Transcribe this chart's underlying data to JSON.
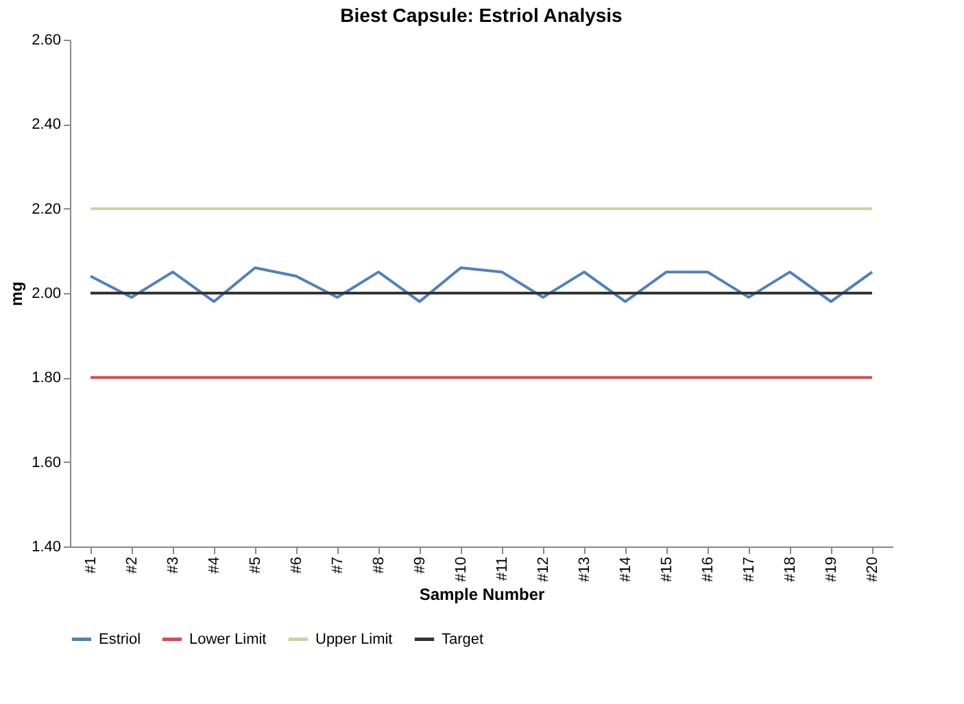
{
  "chart_data": {
    "type": "line",
    "title": "Biest Capsule:  Estriol Analysis",
    "xlabel": "Sample Number",
    "ylabel": "mg",
    "categories": [
      "#1",
      "#2",
      "#3",
      "#4",
      "#5",
      "#6",
      "#7",
      "#8",
      "#9",
      "#10",
      "#11",
      "#12",
      "#13",
      "#14",
      "#15",
      "#16",
      "#17",
      "#18",
      "#19",
      "#20"
    ],
    "series": [
      {
        "name": "Estriol",
        "color": "#4f81bd",
        "values": [
          2.04,
          1.99,
          2.05,
          1.98,
          2.06,
          2.04,
          1.99,
          2.05,
          1.98,
          2.06,
          2.05,
          1.99,
          2.05,
          1.98,
          2.05,
          2.05,
          1.99,
          2.05,
          1.98,
          2.05
        ]
      },
      {
        "name": "Lower Limit",
        "color": "#e0474c",
        "values": [
          1.8,
          1.8,
          1.8,
          1.8,
          1.8,
          1.8,
          1.8,
          1.8,
          1.8,
          1.8,
          1.8,
          1.8,
          1.8,
          1.8,
          1.8,
          1.8,
          1.8,
          1.8,
          1.8,
          1.8
        ]
      },
      {
        "name": "Upper Limit",
        "color": "#c3d69b",
        "values": [
          2.2,
          2.2,
          2.2,
          2.2,
          2.2,
          2.2,
          2.2,
          2.2,
          2.2,
          2.2,
          2.2,
          2.2,
          2.2,
          2.2,
          2.2,
          2.2,
          2.2,
          2.2,
          2.2,
          2.2
        ]
      },
      {
        "name": "Target",
        "color": "#333333",
        "values": [
          2.0,
          2.0,
          2.0,
          2.0,
          2.0,
          2.0,
          2.0,
          2.0,
          2.0,
          2.0,
          2.0,
          2.0,
          2.0,
          2.0,
          2.0,
          2.0,
          2.0,
          2.0,
          2.0,
          2.0
        ]
      }
    ],
    "ylim": [
      1.4,
      2.6
    ],
    "yticks": [
      {
        "value": 1.4,
        "label": "1.40"
      },
      {
        "value": 1.6,
        "label": "1.60"
      },
      {
        "value": 1.8,
        "label": "1.80"
      },
      {
        "value": 2.0,
        "label": "2.00"
      },
      {
        "value": 2.2,
        "label": "2.20"
      },
      {
        "value": 2.4,
        "label": "2.40"
      },
      {
        "value": 2.6,
        "label": "2.60"
      }
    ],
    "grid": false,
    "legend": "bottom",
    "marker": "none",
    "line_style": "solid"
  }
}
